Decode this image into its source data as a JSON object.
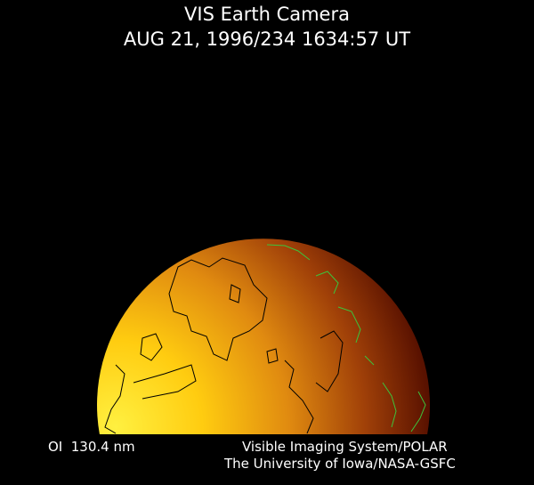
{
  "header": {
    "title": "VIS Earth Camera",
    "timestamp": "AUG 21, 1996/234 1634:57 UT"
  },
  "footer": {
    "filter": "OI  130.4 nm",
    "instrument": "Visible Imaging System/POLAR",
    "institution": "The University of Iowa/NASA-GSFC"
  },
  "colors": {
    "background": "#000000",
    "dayside": "#ffe020",
    "nightside": "#5a0f00",
    "coastline_dayside": "#000000",
    "coastline_nightside": "#3cc43c"
  }
}
